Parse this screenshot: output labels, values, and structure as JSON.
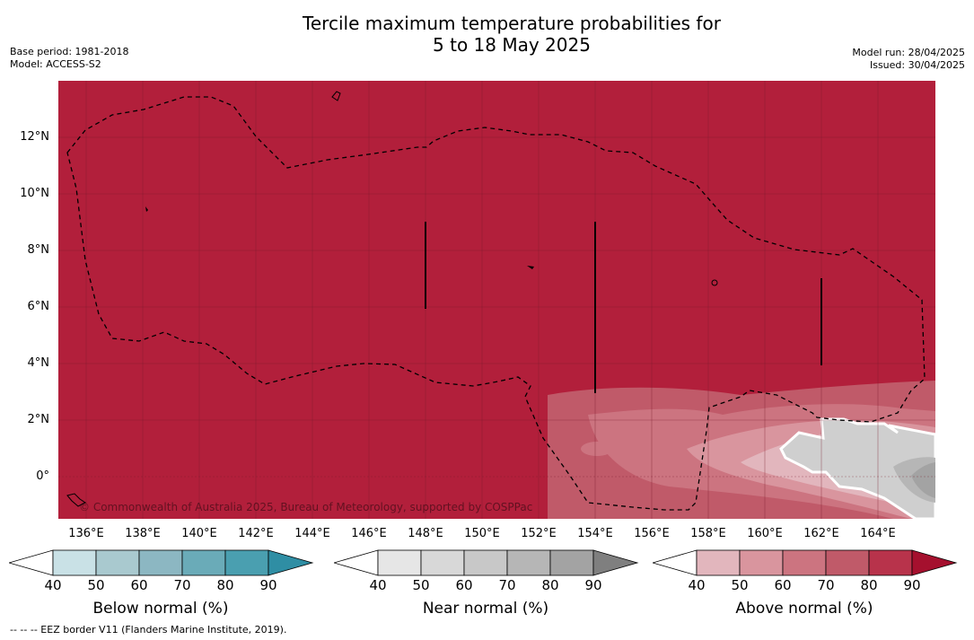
{
  "title": {
    "line1": "Tercile maximum temperature probabilities for",
    "line2": "5 to 18 May 2025"
  },
  "meta_left": {
    "base_period": "Base period: 1981-2018",
    "model": "Model: ACCESS-S2"
  },
  "meta_right": {
    "model_run": "Model run: 28/04/2025",
    "issued": "Issued: 30/04/2025"
  },
  "map": {
    "lat_labels": [
      "12°N",
      "10°N",
      "8°N",
      "6°N",
      "4°N",
      "2°N",
      "0°"
    ],
    "lon_labels": [
      "136°E",
      "138°E",
      "140°E",
      "142°E",
      "144°E",
      "146°E",
      "148°E",
      "150°E",
      "152°E",
      "154°E",
      "156°E",
      "158°E",
      "160°E",
      "162°E",
      "164°E"
    ],
    "copyright": "© Commonwealth of Australia 2025, Bureau of Meteorology, supported by COSPPac",
    "background_color": "#b21f3b"
  },
  "colorbars": [
    {
      "label": "Below normal (%)",
      "ticks": [
        "40",
        "50",
        "60",
        "70",
        "80",
        "90"
      ],
      "colors": [
        "#ffffff",
        "#c9e1e6",
        "#a9c9cf",
        "#8cb7c2",
        "#6aabb8",
        "#4a9fb0",
        "#2f8ea4"
      ]
    },
    {
      "label": "Near normal (%)",
      "ticks": [
        "40",
        "50",
        "60",
        "70",
        "80",
        "90"
      ],
      "colors": [
        "#ffffff",
        "#e6e6e6",
        "#d8d8d8",
        "#c8c8c8",
        "#b6b6b6",
        "#a3a3a3",
        "#7f7f7f"
      ]
    },
    {
      "label": "Above normal (%)",
      "ticks": [
        "40",
        "50",
        "60",
        "70",
        "80",
        "90"
      ],
      "colors": [
        "#ffffff",
        "#e2b6bd",
        "#d9959e",
        "#cc7480",
        "#c05a69",
        "#b8334b",
        "#a5102e"
      ]
    }
  ],
  "footer": "--  --  -- EEZ border V11 (Flanders Marine Institute, 2019)."
}
